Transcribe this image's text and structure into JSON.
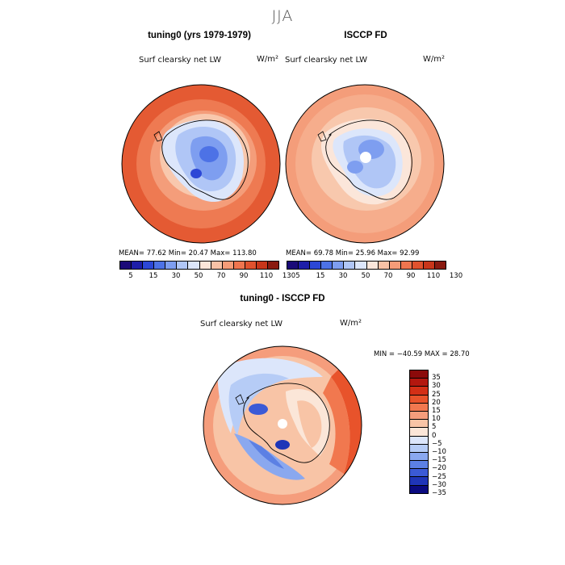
{
  "season": "JJA",
  "panels": [
    {
      "title": "tuning0 (yrs 1979-1979)",
      "field": "Surf clearsky net LW",
      "units": "W/m²",
      "stats": "MEAN=  77.62   Min=  20.47   Max= 113.80",
      "colorbar_ticks": [
        "5",
        "15",
        "30",
        "50",
        "70",
        "90",
        "110",
        "130"
      ]
    },
    {
      "title": "ISCCP FD",
      "field": "Surf clearsky net LW",
      "units": "W/m²",
      "stats": "MEAN=  69.78   Min=  25.96   Max=  92.99",
      "colorbar_ticks": [
        "5",
        "15",
        "30",
        "50",
        "70",
        "90",
        "110",
        "130"
      ]
    }
  ],
  "diff": {
    "title": "tuning0 - ISCCP FD",
    "field": "Surf clearsky net LW",
    "units": "W/m²",
    "stats": "MIN = −40.59 MAX =  28.70",
    "colorbar_ticks": [
      "35",
      "30",
      "25",
      "20",
      "15",
      "10",
      "5",
      "0",
      "−5",
      "−10",
      "−15",
      "−20",
      "−25",
      "−30",
      "−35"
    ]
  },
  "colors": {
    "abs_scale": [
      "#1a0a78",
      "#1e1ea8",
      "#2c47d6",
      "#4d72e6",
      "#7e9ef0",
      "#b0c6f6",
      "#dce6fb",
      "#fbe6da",
      "#f8c2a6",
      "#f59c78",
      "#ef754f",
      "#e0522e",
      "#c8361a",
      "#8a1a10"
    ],
    "diff_scale": [
      "#8b0a0a",
      "#b3170f",
      "#d32f16",
      "#e8532b",
      "#f1784f",
      "#f59d7c",
      "#f8c4a6",
      "#fbe6d8",
      "#dce6fb",
      "#b6ccf6",
      "#8aa8ef",
      "#5c80e4",
      "#3b5ad6",
      "#1f35b8",
      "#0a0a80"
    ],
    "land_outline": "#000000"
  }
}
